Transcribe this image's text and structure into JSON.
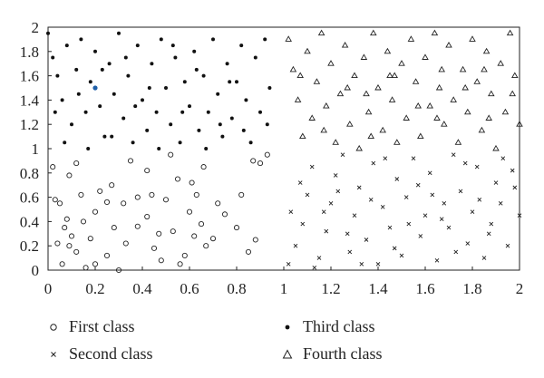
{
  "chart_data": {
    "type": "scatter",
    "title": "",
    "xlabel": "",
    "ylabel": "",
    "xlim": [
      0,
      2
    ],
    "ylim": [
      0,
      2
    ],
    "xticks": [
      "0",
      "0.2",
      "0.4",
      "0.6",
      "0.8",
      "1",
      "1.2",
      "1.4",
      "1.6",
      "1.8",
      "2"
    ],
    "yticks": [
      "0",
      "0.2",
      "0.4",
      "0.6",
      "0.8",
      "1",
      "1.2",
      "1.4",
      "1.6",
      "1.8",
      "2"
    ],
    "grid": false,
    "legend_position": "bottom",
    "highlight_point": {
      "x": 0.2,
      "y": 1.5,
      "color": "#1f5fa8"
    },
    "series": [
      {
        "name": "First class",
        "marker": "open-circle",
        "points": [
          [
            0.02,
            0.85
          ],
          [
            0.03,
            0.58
          ],
          [
            0.05,
            0.55
          ],
          [
            0.08,
            0.42
          ],
          [
            0.04,
            0.22
          ],
          [
            0.06,
            0.05
          ],
          [
            0.1,
            0.28
          ],
          [
            0.12,
            0.15
          ],
          [
            0.15,
            0.4
          ],
          [
            0.18,
            0.26
          ],
          [
            0.2,
            0.48
          ],
          [
            0.22,
            0.65
          ],
          [
            0.14,
            0.62
          ],
          [
            0.09,
            0.78
          ],
          [
            0.12,
            0.88
          ],
          [
            0.2,
            0.05
          ],
          [
            0.25,
            0.12
          ],
          [
            0.28,
            0.35
          ],
          [
            0.3,
            0.0
          ],
          [
            0.33,
            0.22
          ],
          [
            0.27,
            0.7
          ],
          [
            0.35,
            0.9
          ],
          [
            0.38,
            0.6
          ],
          [
            0.42,
            0.44
          ],
          [
            0.45,
            0.18
          ],
          [
            0.48,
            0.08
          ],
          [
            0.5,
            0.58
          ],
          [
            0.53,
            0.32
          ],
          [
            0.55,
            0.75
          ],
          [
            0.58,
            0.12
          ],
          [
            0.6,
            0.48
          ],
          [
            0.62,
            0.28
          ],
          [
            0.65,
            0.38
          ],
          [
            0.67,
            0.2
          ],
          [
            0.7,
            0.26
          ],
          [
            0.72,
            0.55
          ],
          [
            0.66,
            0.85
          ],
          [
            0.52,
            0.95
          ],
          [
            0.42,
            0.82
          ],
          [
            0.32,
            0.55
          ],
          [
            0.16,
            0.02
          ],
          [
            0.47,
            0.3
          ],
          [
            0.56,
            0.05
          ],
          [
            0.63,
            0.62
          ],
          [
            0.75,
            0.46
          ],
          [
            0.8,
            0.35
          ],
          [
            0.82,
            0.62
          ],
          [
            0.87,
            0.9
          ],
          [
            0.9,
            0.88
          ],
          [
            0.93,
            0.95
          ],
          [
            0.88,
            0.25
          ],
          [
            0.85,
            0.15
          ],
          [
            0.25,
            0.56
          ],
          [
            0.38,
            0.36
          ],
          [
            0.44,
            0.62
          ],
          [
            0.61,
            0.72
          ],
          [
            0.09,
            0.2
          ],
          [
            0.07,
            0.35
          ]
        ]
      },
      {
        "name": "Second class",
        "marker": "x",
        "points": [
          [
            1.02,
            0.05
          ],
          [
            1.05,
            0.2
          ],
          [
            1.08,
            0.38
          ],
          [
            1.1,
            0.62
          ],
          [
            1.12,
            0.85
          ],
          [
            1.15,
            0.1
          ],
          [
            1.18,
            0.32
          ],
          [
            1.2,
            0.55
          ],
          [
            1.22,
            0.78
          ],
          [
            1.25,
            0.95
          ],
          [
            1.28,
            0.15
          ],
          [
            1.3,
            0.45
          ],
          [
            1.32,
            0.68
          ],
          [
            1.35,
            0.25
          ],
          [
            1.38,
            0.88
          ],
          [
            1.4,
            0.05
          ],
          [
            1.42,
            0.52
          ],
          [
            1.45,
            0.35
          ],
          [
            1.48,
            0.75
          ],
          [
            1.5,
            0.12
          ],
          [
            1.52,
            0.6
          ],
          [
            1.55,
            0.92
          ],
          [
            1.58,
            0.28
          ],
          [
            1.6,
            0.45
          ],
          [
            1.62,
            0.8
          ],
          [
            1.65,
            0.08
          ],
          [
            1.68,
            0.55
          ],
          [
            1.7,
            0.35
          ],
          [
            1.72,
            0.95
          ],
          [
            1.75,
            0.65
          ],
          [
            1.78,
            0.22
          ],
          [
            1.8,
            0.48
          ],
          [
            1.82,
            0.85
          ],
          [
            1.85,
            0.1
          ],
          [
            1.88,
            0.38
          ],
          [
            1.9,
            0.72
          ],
          [
            1.92,
            0.55
          ],
          [
            1.95,
            0.2
          ],
          [
            1.98,
            0.68
          ],
          [
            2.0,
            0.45
          ],
          [
            1.07,
            0.72
          ],
          [
            1.17,
            0.48
          ],
          [
            1.27,
            0.3
          ],
          [
            1.37,
            0.58
          ],
          [
            1.47,
            0.18
          ],
          [
            1.57,
            0.7
          ],
          [
            1.67,
            0.42
          ],
          [
            1.77,
            0.88
          ],
          [
            1.87,
            0.3
          ],
          [
            1.97,
            0.82
          ],
          [
            1.03,
            0.48
          ],
          [
            1.13,
            0.02
          ],
          [
            1.23,
            0.65
          ],
          [
            1.33,
            0.05
          ],
          [
            1.43,
            0.92
          ],
          [
            1.53,
            0.38
          ],
          [
            1.63,
            0.62
          ],
          [
            1.73,
            0.15
          ],
          [
            1.83,
            0.58
          ],
          [
            1.93,
            0.92
          ]
        ]
      },
      {
        "name": "Third class",
        "marker": "dot",
        "points": [
          [
            0.0,
            1.95
          ],
          [
            0.02,
            1.75
          ],
          [
            0.04,
            1.6
          ],
          [
            0.06,
            1.4
          ],
          [
            0.08,
            1.85
          ],
          [
            0.1,
            1.2
          ],
          [
            0.12,
            1.65
          ],
          [
            0.14,
            1.9
          ],
          [
            0.16,
            1.3
          ],
          [
            0.18,
            1.55
          ],
          [
            0.2,
            1.8
          ],
          [
            0.22,
            1.35
          ],
          [
            0.24,
            1.1
          ],
          [
            0.26,
            1.7
          ],
          [
            0.28,
            1.45
          ],
          [
            0.3,
            1.95
          ],
          [
            0.32,
            1.25
          ],
          [
            0.34,
            1.6
          ],
          [
            0.36,
            1.05
          ],
          [
            0.38,
            1.85
          ],
          [
            0.4,
            1.4
          ],
          [
            0.42,
            1.15
          ],
          [
            0.44,
            1.7
          ],
          [
            0.46,
            1.3
          ],
          [
            0.48,
            1.9
          ],
          [
            0.5,
            1.5
          ],
          [
            0.52,
            1.2
          ],
          [
            0.54,
            1.75
          ],
          [
            0.56,
            1.05
          ],
          [
            0.58,
            1.55
          ],
          [
            0.6,
            1.35
          ],
          [
            0.62,
            1.8
          ],
          [
            0.64,
            1.15
          ],
          [
            0.66,
            1.6
          ],
          [
            0.68,
            1.3
          ],
          [
            0.7,
            1.9
          ],
          [
            0.72,
            1.45
          ],
          [
            0.74,
            1.1
          ],
          [
            0.76,
            1.7
          ],
          [
            0.78,
            1.25
          ],
          [
            0.8,
            1.55
          ],
          [
            0.82,
            1.85
          ],
          [
            0.84,
            1.4
          ],
          [
            0.86,
            1.05
          ],
          [
            0.88,
            1.75
          ],
          [
            0.9,
            1.3
          ],
          [
            0.92,
            1.9
          ],
          [
            0.94,
            1.5
          ],
          [
            0.07,
            1.05
          ],
          [
            0.17,
            1.0
          ],
          [
            0.27,
            1.1
          ],
          [
            0.37,
            1.35
          ],
          [
            0.47,
            1.0
          ],
          [
            0.57,
            1.3
          ],
          [
            0.67,
            1.0
          ],
          [
            0.77,
            1.55
          ],
          [
            0.13,
            1.45
          ],
          [
            0.23,
            1.65
          ],
          [
            0.33,
            1.75
          ],
          [
            0.43,
            1.5
          ],
          [
            0.53,
            1.85
          ],
          [
            0.63,
            1.65
          ],
          [
            0.73,
            1.2
          ],
          [
            0.83,
            1.15
          ],
          [
            0.93,
            1.2
          ],
          [
            0.03,
            1.3
          ]
        ]
      },
      {
        "name": "Fourth class",
        "marker": "open-triangle",
        "points": [
          [
            1.02,
            1.9
          ],
          [
            1.04,
            1.65
          ],
          [
            1.06,
            1.4
          ],
          [
            1.08,
            1.1
          ],
          [
            1.1,
            1.8
          ],
          [
            1.12,
            1.25
          ],
          [
            1.14,
            1.55
          ],
          [
            1.16,
            1.95
          ],
          [
            1.18,
            1.35
          ],
          [
            1.2,
            1.7
          ],
          [
            1.22,
            1.05
          ],
          [
            1.24,
            1.45
          ],
          [
            1.26,
            1.85
          ],
          [
            1.28,
            1.2
          ],
          [
            1.3,
            1.6
          ],
          [
            1.32,
            1.0
          ],
          [
            1.34,
            1.75
          ],
          [
            1.36,
            1.3
          ],
          [
            1.38,
            1.95
          ],
          [
            1.4,
            1.5
          ],
          [
            1.42,
            1.15
          ],
          [
            1.44,
            1.8
          ],
          [
            1.46,
            1.4
          ],
          [
            1.48,
            1.05
          ],
          [
            1.5,
            1.7
          ],
          [
            1.52,
            1.25
          ],
          [
            1.54,
            1.9
          ],
          [
            1.56,
            1.55
          ],
          [
            1.58,
            1.1
          ],
          [
            1.6,
            1.75
          ],
          [
            1.62,
            1.35
          ],
          [
            1.64,
            1.95
          ],
          [
            1.66,
            1.5
          ],
          [
            1.68,
            1.2
          ],
          [
            1.7,
            1.85
          ],
          [
            1.72,
            1.4
          ],
          [
            1.74,
            1.05
          ],
          [
            1.76,
            1.65
          ],
          [
            1.78,
            1.3
          ],
          [
            1.8,
            1.9
          ],
          [
            1.82,
            1.55
          ],
          [
            1.84,
            1.15
          ],
          [
            1.86,
            1.8
          ],
          [
            1.88,
            1.45
          ],
          [
            1.9,
            1.0
          ],
          [
            1.92,
            1.7
          ],
          [
            1.94,
            1.3
          ],
          [
            1.96,
            1.95
          ],
          [
            1.98,
            1.6
          ],
          [
            2.0,
            1.2
          ],
          [
            1.07,
            1.6
          ],
          [
            1.17,
            1.15
          ],
          [
            1.27,
            1.5
          ],
          [
            1.37,
            1.1
          ],
          [
            1.47,
            1.6
          ],
          [
            1.57,
            1.35
          ],
          [
            1.67,
            1.65
          ],
          [
            1.77,
            1.5
          ],
          [
            1.87,
            1.25
          ],
          [
            1.97,
            1.45
          ],
          [
            1.45,
            1.6
          ],
          [
            1.65,
            1.25
          ],
          [
            1.85,
            1.65
          ],
          [
            1.35,
            1.45
          ]
        ]
      }
    ]
  }
}
